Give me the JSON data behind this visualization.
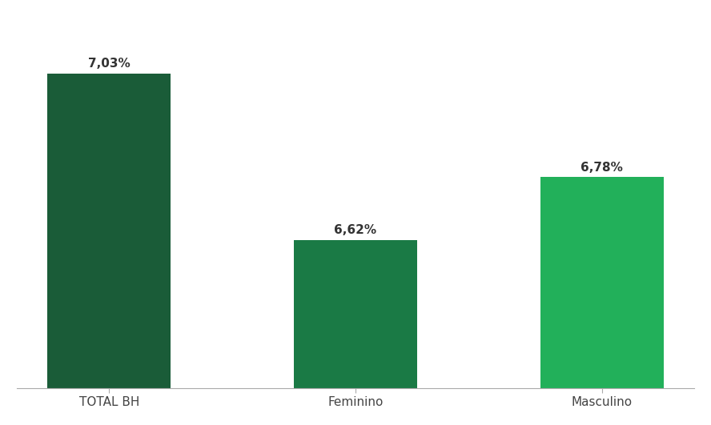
{
  "categories": [
    "TOTAL BH",
    "Feminino",
    "Masculino"
  ],
  "values": [
    100,
    47,
    67
  ],
  "bar_colors": [
    "#1a5c38",
    "#1a7a45",
    "#22b05a"
  ],
  "label_texts": [
    "7,03%",
    "6,62%",
    "6,78%"
  ],
  "background_color": "#ffffff",
  "label_fontsize": 11,
  "tick_fontsize": 11,
  "ylim": [
    0,
    118
  ],
  "bar_width": 0.5
}
